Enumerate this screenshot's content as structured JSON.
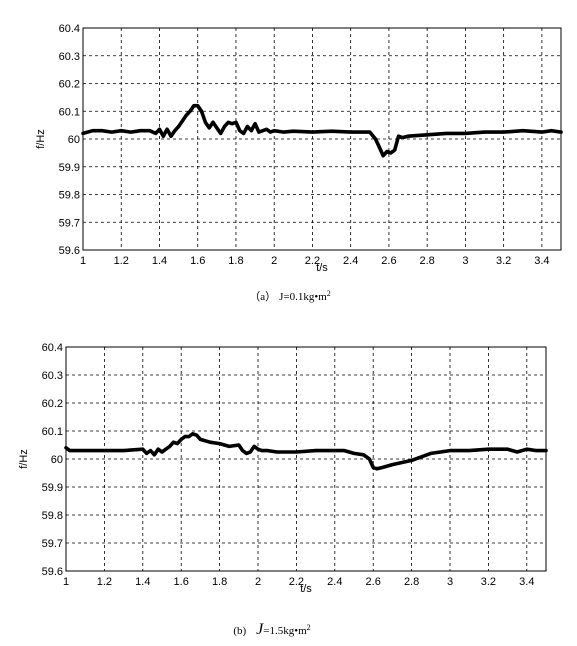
{
  "chart_data": [
    {
      "type": "line",
      "xlabel": "t/s",
      "ylabel": "f/Hz",
      "xlim": [
        1,
        3.5
      ],
      "ylim": [
        59.6,
        60.4
      ],
      "xticks": [
        "1",
        "1.2",
        "1.4",
        "1.6",
        "1.8",
        "2",
        "2.2",
        "2.4",
        "2.6",
        "2.8",
        "3",
        "3.2",
        "3.4"
      ],
      "yticks": [
        "59.6",
        "59.7",
        "59.8",
        "59.9",
        "60",
        "60.1",
        "60.2",
        "60.3",
        "60.4"
      ],
      "grid": true,
      "caption_prefix": "（a）",
      "caption_j": "J",
      "caption_value": "=0.1kg•m",
      "caption_sup": "2",
      "series": [
        {
          "x": [
            1.0,
            1.05,
            1.1,
            1.15,
            1.2,
            1.25,
            1.3,
            1.35,
            1.38,
            1.4,
            1.42,
            1.44,
            1.46,
            1.48,
            1.5,
            1.52,
            1.54,
            1.56,
            1.58,
            1.6,
            1.62,
            1.64,
            1.66,
            1.68,
            1.7,
            1.72,
            1.74,
            1.76,
            1.78,
            1.8,
            1.82,
            1.84,
            1.86,
            1.88,
            1.9,
            1.92,
            1.94,
            1.96,
            1.98,
            2.0,
            2.05,
            2.1,
            2.2,
            2.3,
            2.4,
            2.5,
            2.53,
            2.55,
            2.57,
            2.59,
            2.61,
            2.63,
            2.65,
            2.67,
            2.7,
            2.8,
            2.9,
            3.0,
            3.1,
            3.2,
            3.3,
            3.4,
            3.45,
            3.5
          ],
          "y": [
            60.02,
            60.03,
            60.03,
            60.025,
            60.03,
            60.025,
            60.03,
            60.03,
            60.02,
            60.035,
            60.01,
            60.035,
            60.01,
            60.03,
            60.045,
            60.065,
            60.085,
            60.1,
            60.12,
            60.12,
            60.1,
            60.06,
            60.04,
            60.06,
            60.04,
            60.02,
            60.045,
            60.06,
            60.055,
            60.06,
            60.03,
            60.02,
            60.045,
            60.03,
            60.055,
            60.025,
            60.03,
            60.035,
            60.025,
            60.03,
            60.025,
            60.028,
            60.025,
            60.028,
            60.025,
            60.025,
            60.0,
            59.97,
            59.94,
            59.955,
            59.95,
            59.96,
            60.01,
            60.005,
            60.01,
            60.015,
            60.02,
            60.02,
            60.025,
            60.025,
            60.03,
            60.025,
            60.03,
            60.025
          ]
        }
      ]
    },
    {
      "type": "line",
      "xlabel": "t/s",
      "ylabel": "f/Hz",
      "xlim": [
        1,
        3.5
      ],
      "ylim": [
        59.6,
        60.4
      ],
      "xticks": [
        "1",
        "1.2",
        "1.4",
        "1.6",
        "1.8",
        "2",
        "2.2",
        "2.4",
        "2.6",
        "2.8",
        "3",
        "3.2",
        "3.4"
      ],
      "yticks": [
        "59.6",
        "59.7",
        "59.8",
        "59.9",
        "60",
        "60.1",
        "60.2",
        "60.3",
        "60.4"
      ],
      "grid": true,
      "caption_prefix": "(b)",
      "caption_j": "J",
      "caption_value": "=1.5kg•m",
      "caption_sup": "2",
      "series": [
        {
          "x": [
            1.0,
            1.02,
            1.05,
            1.1,
            1.2,
            1.3,
            1.4,
            1.42,
            1.44,
            1.46,
            1.48,
            1.5,
            1.52,
            1.54,
            1.56,
            1.58,
            1.6,
            1.62,
            1.64,
            1.66,
            1.68,
            1.7,
            1.75,
            1.8,
            1.85,
            1.9,
            1.92,
            1.94,
            1.96,
            1.98,
            2.0,
            2.02,
            2.05,
            2.1,
            2.2,
            2.3,
            2.4,
            2.45,
            2.5,
            2.55,
            2.58,
            2.6,
            2.62,
            2.65,
            2.7,
            2.8,
            2.9,
            3.0,
            3.1,
            3.2,
            3.3,
            3.35,
            3.4,
            3.45,
            3.5
          ],
          "y": [
            60.04,
            60.03,
            60.03,
            60.03,
            60.03,
            60.03,
            60.035,
            60.02,
            60.03,
            60.015,
            60.035,
            60.025,
            60.035,
            60.045,
            60.06,
            60.055,
            60.07,
            60.08,
            60.08,
            60.09,
            60.085,
            60.07,
            60.06,
            60.055,
            60.045,
            60.05,
            60.03,
            60.02,
            60.025,
            60.045,
            60.035,
            60.03,
            60.03,
            60.025,
            60.025,
            60.03,
            60.03,
            60.03,
            60.02,
            60.015,
            60.0,
            59.97,
            59.965,
            59.97,
            59.98,
            59.995,
            60.02,
            60.03,
            60.03,
            60.035,
            60.035,
            60.025,
            60.035,
            60.03,
            60.03
          ]
        }
      ]
    }
  ]
}
